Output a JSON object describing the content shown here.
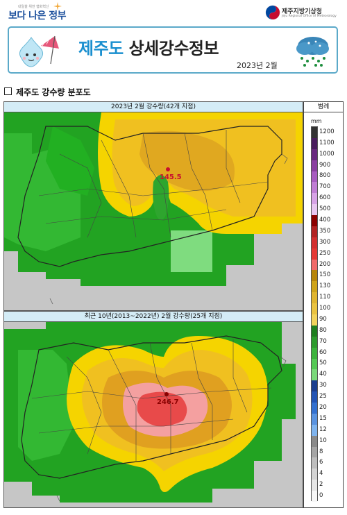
{
  "header": {
    "gov_tagline": "내일을 위한 협화혁신",
    "gov_logo": "보다 나은 정부",
    "agency_name": "제주지방기상청",
    "agency_name_en": "Jeju Regional Office of Meteorology",
    "agency_icon": "kma-emblem-icon"
  },
  "banner": {
    "title_highlight": "제주도",
    "title_rest": " 상세강수정보",
    "date": "2023년 2월",
    "mascot_icon": "raindrop-mascot-with-umbrella-icon",
    "weather_icon": "rain-cloud-icon"
  },
  "section": {
    "title": "제주도 강수량 분포도"
  },
  "map_current": {
    "header": "2023년 2월 강수량(42개 지점)",
    "station_value": "145.5"
  },
  "map_normal": {
    "header": "최근 10년(2013~2022년) 2월 강수량(25개 지점)",
    "station_value": "246.7"
  },
  "legend": {
    "header": "범례",
    "unit": "mm",
    "levels": [
      "1200",
      "1100",
      "1000",
      "900",
      "800",
      "700",
      "600",
      "500",
      "400",
      "350",
      "300",
      "250",
      "200",
      "150",
      "130",
      "110",
      "100",
      "90",
      "80",
      "70",
      "60",
      "50",
      "40",
      "30",
      "25",
      "20",
      "15",
      "12",
      "10",
      "8",
      "6",
      "4",
      "2",
      "0"
    ],
    "colors": [
      "#333333",
      "#4a1d5e",
      "#6a2a80",
      "#8a3fa0",
      "#a85cc0",
      "#c07dd4",
      "#d7a2e6",
      "#e8c6f0",
      "#8b0000",
      "#b22222",
      "#d32f2f",
      "#e53935",
      "#f06a6a",
      "#b8860b",
      "#cfa41a",
      "#e0b530",
      "#eac341",
      "#f2d35c",
      "#1f7f1f",
      "#2e9b2e",
      "#3cb33c",
      "#55c955",
      "#7bd97b",
      "#1c3f8f",
      "#2455b5",
      "#3471d0",
      "#5a93e0",
      "#7fb4ee",
      "#8a8a8a",
      "#a5a5a5",
      "#bdbdbd",
      "#d3d3d3",
      "#e6e6e6",
      "#f7f7f7"
    ]
  }
}
